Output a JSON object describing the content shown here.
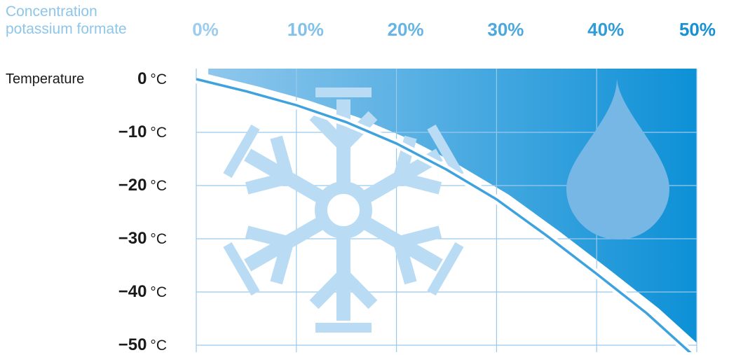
{
  "chart_data": {
    "type": "area",
    "xlabel": [
      "Concentration",
      "potassium formate"
    ],
    "ylabel": "Temperature",
    "x_ticks": [
      "0%",
      "10%",
      "20%",
      "30%",
      "40%",
      "50%"
    ],
    "y_ticks": [
      {
        "value": "0",
        "unit": "°C"
      },
      {
        "value": "−10",
        "unit": "°C"
      },
      {
        "value": "−20",
        "unit": "°C"
      },
      {
        "value": "−30",
        "unit": "°C"
      },
      {
        "value": "−40",
        "unit": "°C"
      },
      {
        "value": "−50",
        "unit": "°C"
      }
    ],
    "xlim": [
      0,
      50
    ],
    "ylim": [
      -50,
      0
    ],
    "grid": true,
    "freezing_curve": {
      "x": [
        0,
        5,
        10,
        15,
        20,
        25,
        30,
        35,
        40,
        45,
        50
      ],
      "y": [
        0,
        -2.3,
        -4.9,
        -8.1,
        -12.1,
        -17.0,
        -22.6,
        -29.4,
        -36.6,
        -44.0,
        -52.5
      ]
    },
    "regions": [
      {
        "name": "frozen",
        "icon": "snowflake-icon",
        "color": "#b9dcf4"
      },
      {
        "name": "liquid",
        "icon": "droplet-icon",
        "color": "#77b7e6"
      }
    ],
    "colors": {
      "curve": "#3ea2de",
      "grid": "#99c9ec",
      "fill_start": "#8fc7ec",
      "fill_end": "#0a8fd6",
      "tick_start": "#9dcdee",
      "tick_end": "#1790d4"
    }
  }
}
